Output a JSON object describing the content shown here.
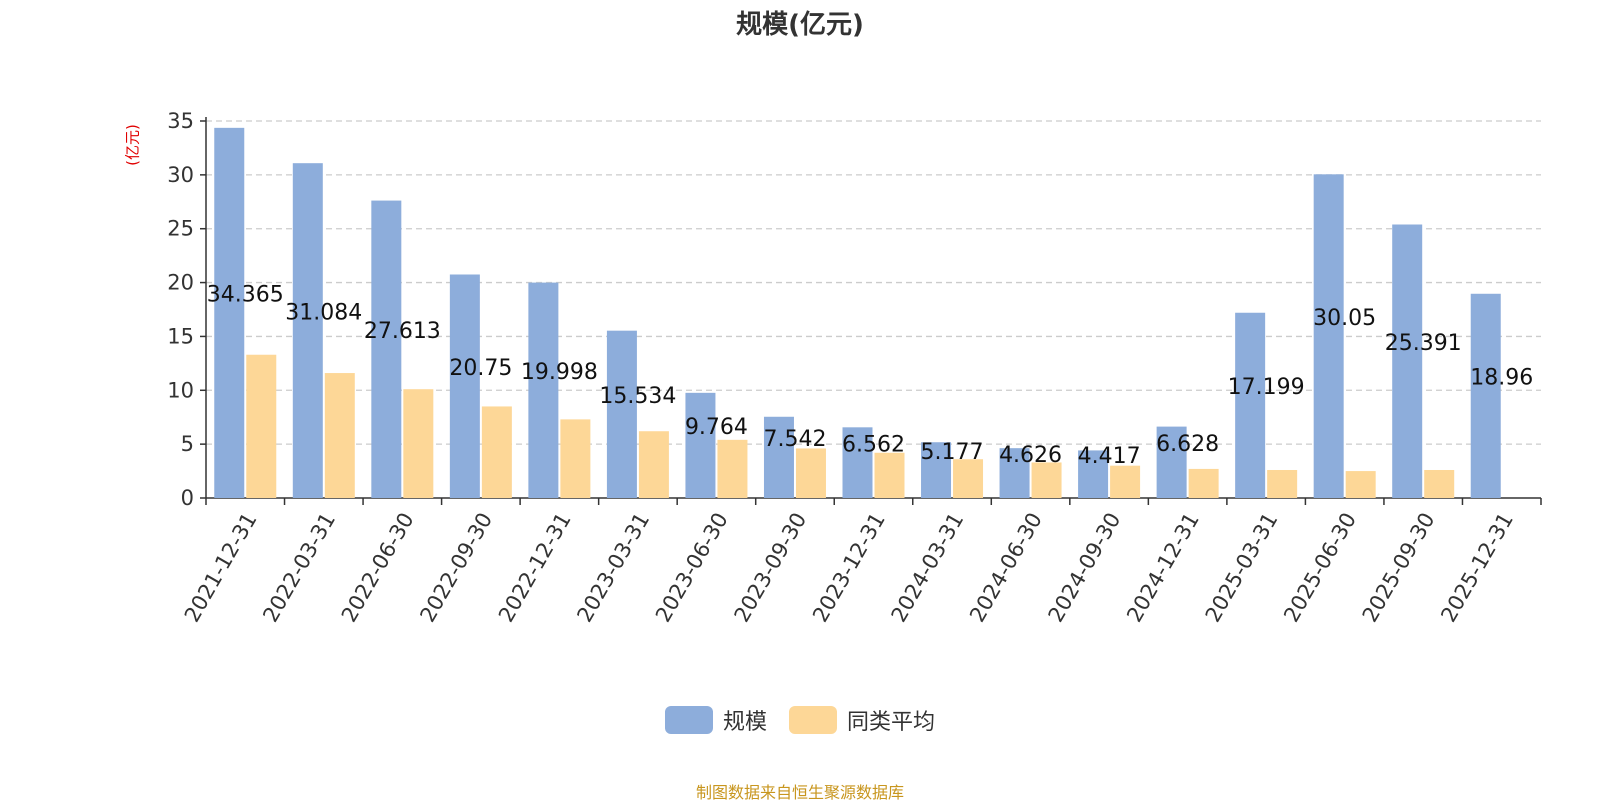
{
  "chart_data": {
    "type": "bar",
    "title": "规模(亿元)",
    "ylabel": "(亿元)",
    "xlabel": "",
    "ylim": [
      0,
      35
    ],
    "yticks": [
      0,
      5,
      10,
      15,
      20,
      25,
      30,
      35
    ],
    "grid": true,
    "legend_position": "bottom",
    "categories": [
      "2021-12-31",
      "2022-03-31",
      "2022-06-30",
      "2022-09-30",
      "2022-12-31",
      "2023-03-31",
      "2023-06-30",
      "2023-09-30",
      "2023-12-31",
      "2024-03-31",
      "2024-06-30",
      "2024-09-30",
      "2024-12-31",
      "2025-03-31",
      "2025-06-30",
      "2025-09-30",
      "2025-12-31"
    ],
    "series": [
      {
        "name": "规模",
        "color": "#8daddb",
        "values": [
          34.365,
          31.084,
          27.613,
          20.75,
          19.998,
          15.534,
          9.764,
          7.542,
          6.562,
          5.177,
          4.626,
          4.417,
          6.628,
          17.199,
          30.05,
          25.391,
          18.96
        ],
        "labels": [
          "34.365",
          "31.084",
          "27.613",
          "20.75",
          "19.998",
          "15.534",
          "9.764",
          "7.542",
          "6.562",
          "5.177",
          "4.626",
          "4.417",
          "6.628",
          "17.199",
          "30.05",
          "25.391",
          "18.96"
        ]
      },
      {
        "name": "同类平均",
        "color": "#fdd797",
        "values": [
          13.3,
          11.6,
          10.1,
          8.5,
          7.3,
          6.2,
          5.4,
          4.6,
          4.2,
          3.6,
          3.3,
          3.0,
          2.7,
          2.6,
          2.5,
          2.6,
          null
        ]
      }
    ]
  },
  "footer": {
    "source": "制图数据来自恒生聚源数据库"
  }
}
